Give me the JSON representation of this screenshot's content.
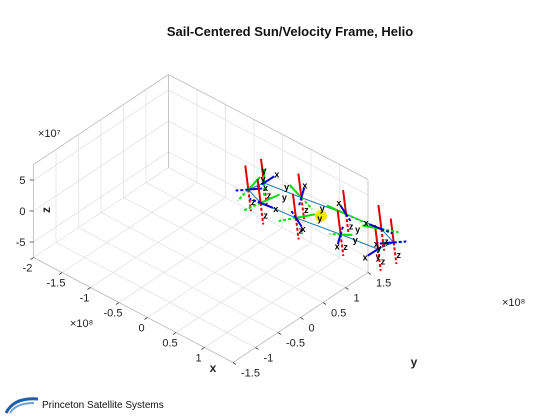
{
  "chart_data": {
    "type": "line3d",
    "title": "Sail-Centered Sun/Velocity Frame, Helio",
    "xlabel": "x",
    "ylabel": "y",
    "zlabel": "z",
    "xlim": [
      -200000000,
      150000000
    ],
    "ylim": [
      -150000000,
      150000000
    ],
    "zlim": [
      -75000000,
      75000000
    ],
    "x_ticks": [
      "-2",
      "-1.5",
      "-1",
      "-0.5",
      "0",
      "0.5",
      "1"
    ],
    "y_ticks": [
      "-1.5",
      "-1",
      "-0.5",
      "0",
      "0.5",
      "1",
      "1.5"
    ],
    "z_ticks": [
      "5",
      "0",
      "-5"
    ],
    "x_exponent": "×10⁸",
    "y_exponent": "×10⁸",
    "z_exponent": "×10⁷",
    "sun": {
      "x": 0,
      "y": 0,
      "z": 0,
      "color": "#f5e800"
    },
    "trajectory_color": "#1f77b4",
    "frame_colors": {
      "x": "#0000cc",
      "y": "#00dd00",
      "z": "#dd0000"
    },
    "frame_labels": {
      "x": "x",
      "y": "y",
      "z": "z"
    },
    "series": [
      {
        "points": [
          {
            "x": 100000000.0,
            "y": 0.0,
            "z": -5000000.0
          },
          {
            "x": 81000000.0,
            "y": 59000000.0,
            "z": -32000000.0
          },
          {
            "x": 31000000.0,
            "y": 95000000.0,
            "z": -52000000.0
          },
          {
            "x": -31000000.0,
            "y": 95000000.0,
            "z": -58000000.0
          },
          {
            "x": -81000000.0,
            "y": 59000000.0,
            "z": -38000000.0
          },
          {
            "x": -100000000.0,
            "y": 0.0,
            "z": 5000000.0
          },
          {
            "x": -81000000.0,
            "y": -59000000.0,
            "z": 32000000.0
          },
          {
            "x": -31000000.0,
            "y": -95000000.0,
            "z": 52000000.0
          },
          {
            "x": 31000000.0,
            "y": -95000000.0,
            "z": 58000000.0
          },
          {
            "x": 81000000.0,
            "y": -59000000.0,
            "z": 38000000.0
          },
          {
            "x": 100000000.0,
            "y": 0.0,
            "z": -5000000.0
          }
        ]
      }
    ]
  },
  "footer": {
    "company": "Princeton Satellite Systems"
  }
}
